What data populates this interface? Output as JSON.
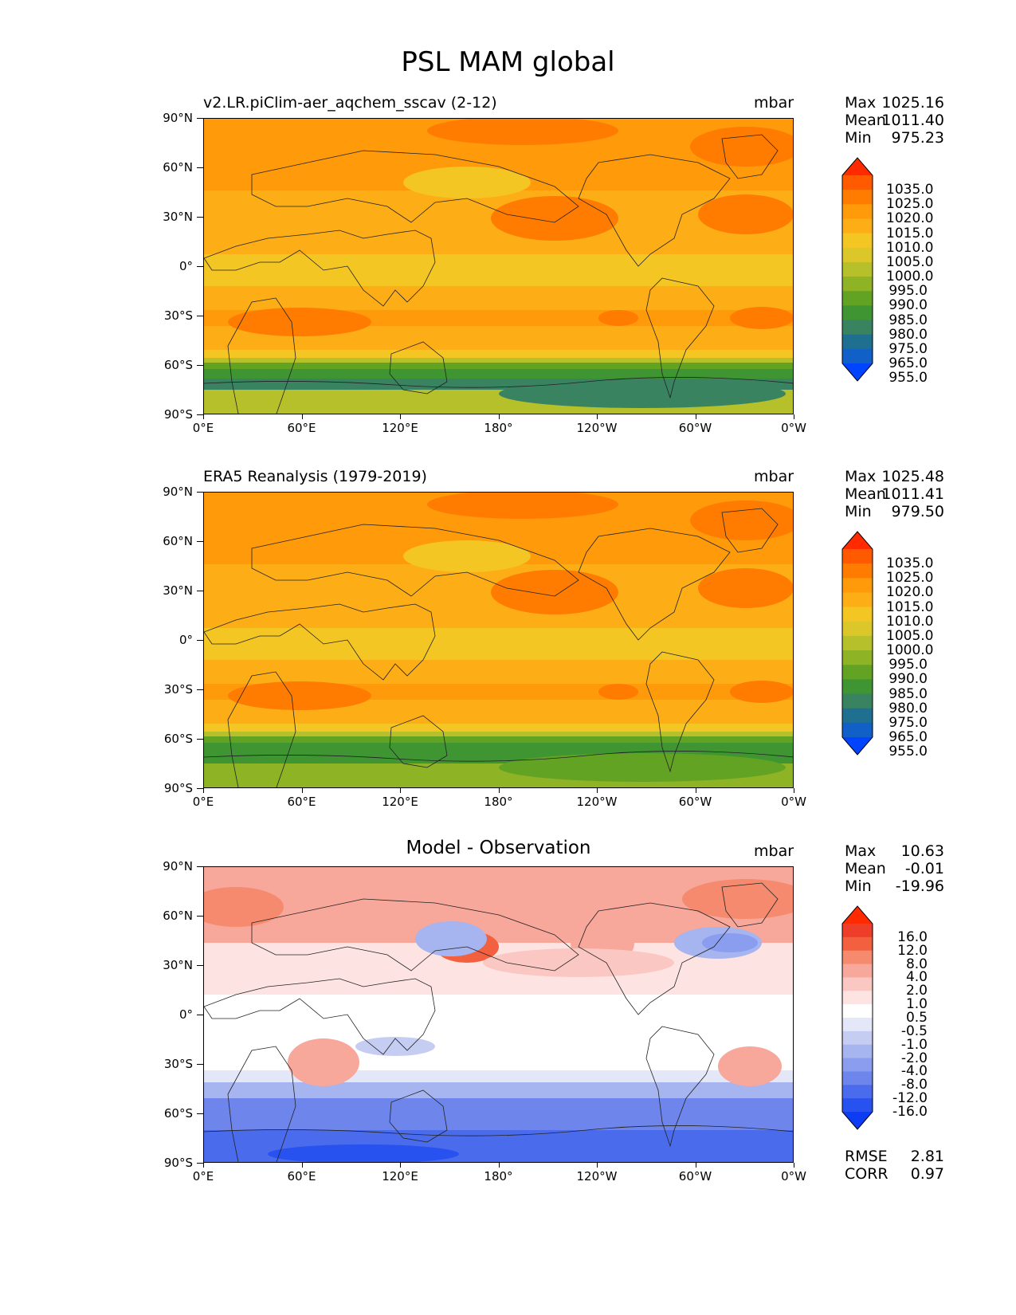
{
  "figure_title": "PSL MAM global",
  "x_ticks": [
    "0°E",
    "60°E",
    "120°E",
    "180°",
    "120°W",
    "60°W",
    "0°W"
  ],
  "y_ticks": [
    "90°N",
    "60°N",
    "30°N",
    "0°",
    "30°S",
    "60°S",
    "90°S"
  ],
  "panels": [
    {
      "title": "v2.LR.piClim-aer_aqchem_sscav (2-12)",
      "units": "mbar",
      "stats": {
        "max_label": "Max",
        "max": "1025.16",
        "mean_label": "Mean",
        "mean": "1011.40",
        "min_label": "Min",
        "min": "975.23"
      },
      "levels": [
        "1035.0",
        "1025.0",
        "1020.0",
        "1015.0",
        "1010.0",
        "1005.0",
        "1000.0",
        "995.0",
        "990.0",
        "985.0",
        "980.0",
        "975.0",
        "965.0",
        "955.0"
      ]
    },
    {
      "title": "ERA5 Reanalysis (1979-2019)",
      "units": "mbar",
      "stats": {
        "max_label": "Max",
        "max": "1025.48",
        "mean_label": "Mean",
        "mean": "1011.41",
        "min_label": "Min",
        "min": "979.50"
      },
      "levels": [
        "1035.0",
        "1025.0",
        "1020.0",
        "1015.0",
        "1010.0",
        "1005.0",
        "1000.0",
        "995.0",
        "990.0",
        "985.0",
        "980.0",
        "975.0",
        "965.0",
        "955.0"
      ]
    },
    {
      "title": "Model - Observation",
      "units": "mbar",
      "stats": {
        "max_label": "Max",
        "max": "10.63",
        "mean_label": "Mean",
        "mean": "-0.01",
        "min_label": "Min",
        "min": "-19.96"
      },
      "levels": [
        "16.0",
        "12.0",
        "8.0",
        "4.0",
        "2.0",
        "1.0",
        "0.5",
        "-0.5",
        "-1.0",
        "-2.0",
        "-4.0",
        "-8.0",
        "-12.0",
        "-16.0"
      ]
    }
  ],
  "diff_metrics": {
    "rmse_label": "RMSE",
    "rmse": "2.81",
    "corr_label": "CORR",
    "corr": "0.97"
  },
  "colors": {
    "abs_scale": [
      "#ff2a00",
      "#ff5a00",
      "#ff7c00",
      "#ff9a0a",
      "#fdae17",
      "#f4c624",
      "#dcc72a",
      "#b6c02a",
      "#8eb324",
      "#63a323",
      "#3f9532",
      "#3a8361",
      "#1f7090",
      "#1060c8",
      "#0044ff"
    ],
    "diff_scale": [
      "#ff2a00",
      "#ee3d28",
      "#f2603f",
      "#f68a6e",
      "#f8a79b",
      "#fbc7c2",
      "#fde4e2",
      "#ffffff",
      "#e4e7f8",
      "#c6cdf3",
      "#a6b4ef",
      "#8a9def",
      "#6e86ec",
      "#4a6cec",
      "#2852ef",
      "#0d3cf5"
    ]
  }
}
